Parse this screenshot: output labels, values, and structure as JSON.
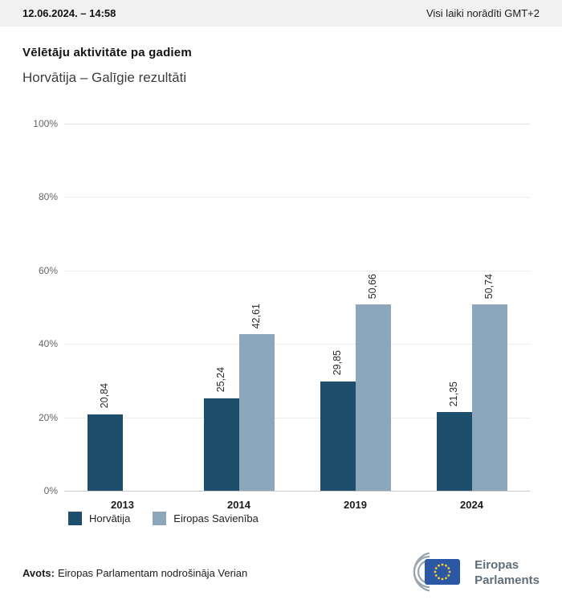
{
  "header": {
    "datetime": "12.06.2024. – 14:58",
    "timezone": "Visi laiki norādīti GMT+2"
  },
  "title": "Vēlētāju aktivitāte pa gadiem",
  "subtitle": "Horvātija – Galīgie rezultāti",
  "chart_data": {
    "type": "bar",
    "categories": [
      "2013",
      "2014",
      "2019",
      "2024"
    ],
    "series": [
      {
        "name": "Horvātija",
        "color": "#1d4f6d",
        "values": [
          20.84,
          25.24,
          29.85,
          21.35
        ]
      },
      {
        "name": "Eiropas Savienība",
        "color": "#8ca6bc",
        "values": [
          null,
          42.61,
          50.66,
          50.74
        ]
      }
    ],
    "value_label_format": "decimal-comma",
    "ylabel": "",
    "xlabel": "",
    "ylim": [
      0,
      100
    ],
    "yticks": [
      0,
      20,
      40,
      60,
      80,
      100
    ],
    "ytick_suffix": "%",
    "grid": true,
    "legend_position": "bottom"
  },
  "footer": {
    "source_label": "Avots:",
    "source_text": "Eiropas Parlamentam nodrošināja Verian",
    "logo_line1": "Eiropas",
    "logo_line2": "Parlaments"
  },
  "colors": {
    "series1": "#1d4f6d",
    "series2": "#8ca6bc",
    "topbar_bg": "#f1f1f1",
    "eu_flag_blue": "#2b57a5",
    "eu_star_yellow": "#f8d12e"
  }
}
